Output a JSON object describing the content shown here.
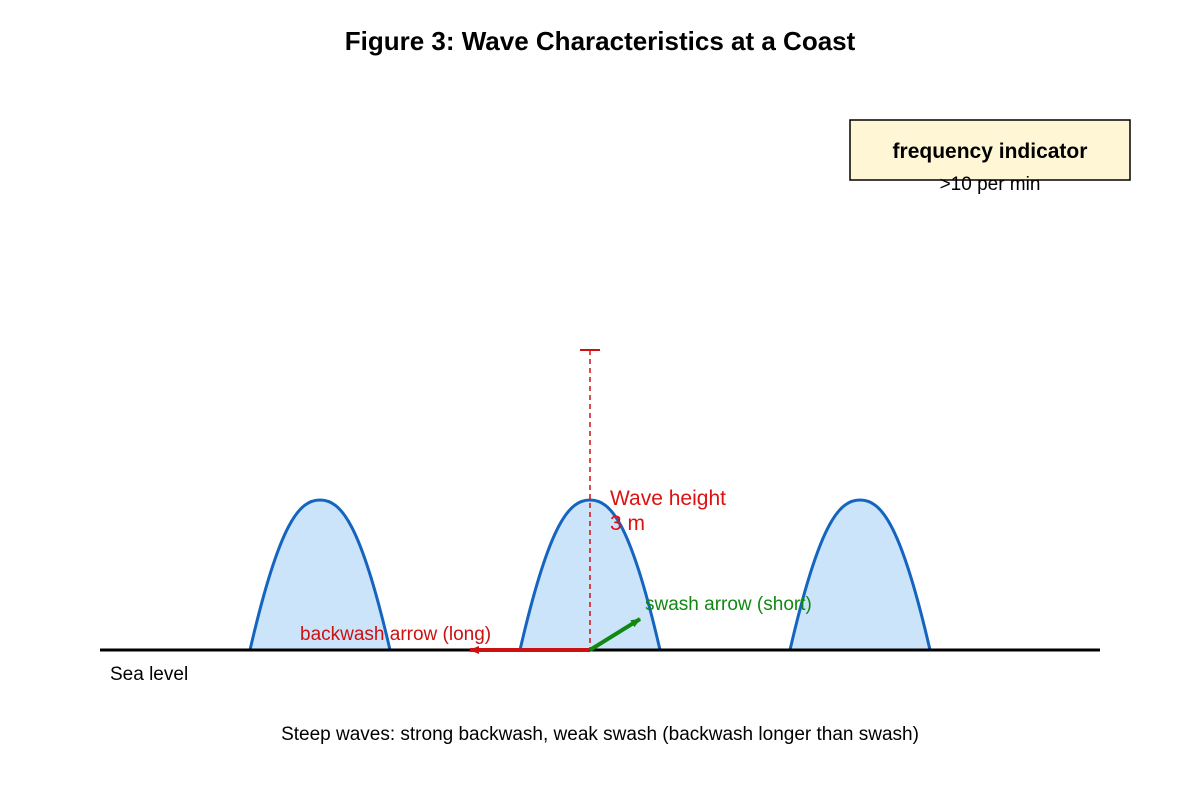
{
  "title": "Figure 3: Wave Characteristics at a Coast",
  "frequency_box": {
    "title": "frequency indicator",
    "value": ">10 per min",
    "fill": "#fff6d5"
  },
  "waves": {
    "count": 3,
    "fill": "#cce4fa",
    "stroke": "#1565c0"
  },
  "wave_height": {
    "label": "Wave height",
    "value": "3 m",
    "color": "#dd1111"
  },
  "swash": {
    "label": "swash arrow (short)",
    "color": "#118811"
  },
  "backwash": {
    "label": "backwash arrow (long)",
    "color": "#cc1111"
  },
  "sea_level_label": "Sea level",
  "caption": "Steep waves: strong backwash, weak swash (backwash longer than swash)"
}
